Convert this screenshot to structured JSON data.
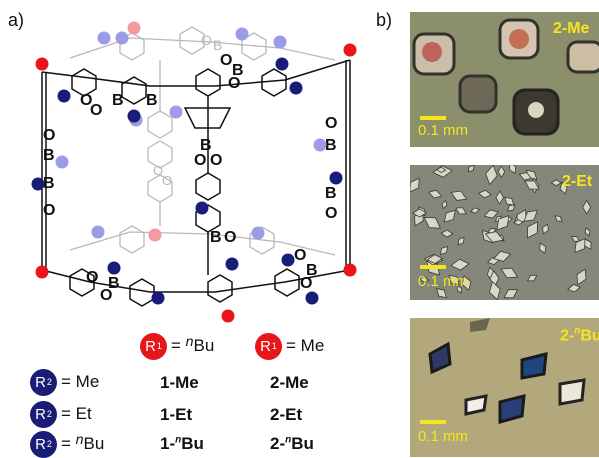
{
  "panels": {
    "a": "a)",
    "b": "b)"
  },
  "structure": {
    "atoms": {
      "boron": "B",
      "oxygen": "O"
    },
    "colors": {
      "r1": "#e8151b",
      "r1_faded": "#f29a9e",
      "r2": "#1a1d78",
      "r2_faded": "#9a9ce6"
    }
  },
  "legend": {
    "r1_symbol": "R",
    "r1_sup": "1",
    "r2_symbol": "R",
    "r2_sup": "2",
    "eq": "=",
    "col1_sub": "Bu",
    "col1_prefix": "n",
    "col2": "Me",
    "rows": [
      {
        "r2": "Me",
        "r2_prefix": "",
        "c1": "1-Me",
        "c2": "2-Me"
      },
      {
        "r2": "Et",
        "r2_prefix": "",
        "c1": "1-Et",
        "c2": "2-Et"
      },
      {
        "r2": "Bu",
        "r2_prefix": "n",
        "c1_base": "1-",
        "c1_sub": "Bu",
        "c2_base": "2-",
        "c2_sub": "Bu"
      }
    ]
  },
  "micrographs": [
    {
      "label": "2-Me",
      "scale": "0.1 mm",
      "bg": "#8b8f6c"
    },
    {
      "label": "2-Et",
      "scale": "0.1 mm",
      "bg": "#85877a"
    },
    {
      "label_base": "2-",
      "label_prefix": "n",
      "label_sub": "Bu",
      "scale": "0.1 mm",
      "bg": "#b2a87c"
    }
  ]
}
